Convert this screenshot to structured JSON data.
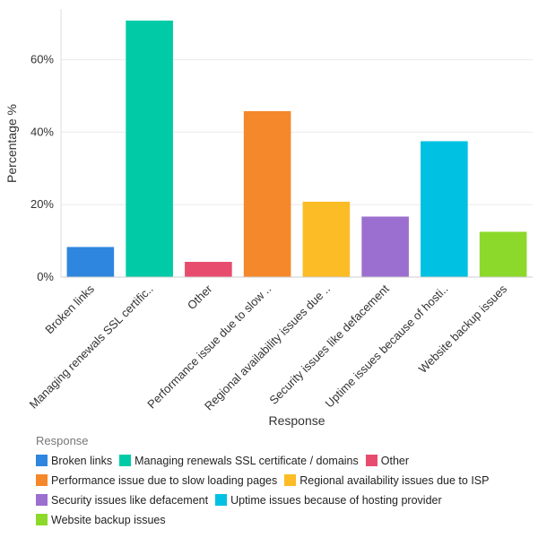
{
  "chart_data": {
    "type": "bar",
    "title": "",
    "xlabel": "Response",
    "ylabel": "Percentage %",
    "ylim": [
      0,
      0.74
    ],
    "y_ticks": [
      0,
      0.2,
      0.4,
      0.6
    ],
    "y_tick_labels": [
      "0%",
      "20%",
      "40%",
      "60%"
    ],
    "categories": [
      "Broken links",
      "Managing renewals SSL certificate / domains",
      "Other",
      "Performance issue due to slow loading pages",
      "Regional availability issues due to ISP",
      "Security issues like defacement",
      "Uptime issues because of hosting provider",
      "Website backup issues"
    ],
    "category_tick_labels": [
      "Broken links",
      "Managing renewals SSL certific..",
      "Other",
      "Performance issue due to slow ..",
      "Regional availability issues due ..",
      "Security issues like defacement",
      "Uptime issues because of hosti..",
      "Website backup issues"
    ],
    "values": [
      0.083,
      0.708,
      0.042,
      0.458,
      0.208,
      0.167,
      0.375,
      0.125
    ],
    "colors": [
      "#2e86de",
      "#00cba6",
      "#e74c6f",
      "#f5882a",
      "#fbbc25",
      "#9b6fcf",
      "#00c1e2",
      "#8cd92b"
    ],
    "legend_title": "Response",
    "legend_position": "bottom"
  }
}
